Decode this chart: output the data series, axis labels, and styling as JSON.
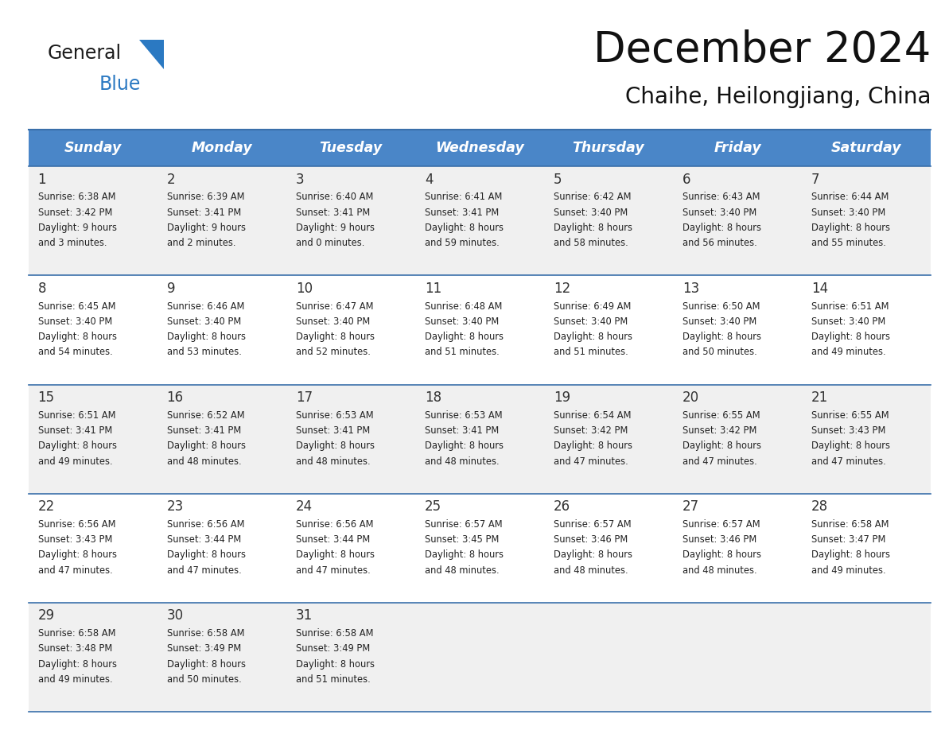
{
  "title": "December 2024",
  "subtitle": "Chaihe, Heilongjiang, China",
  "days_of_week": [
    "Sunday",
    "Monday",
    "Tuesday",
    "Wednesday",
    "Thursday",
    "Friday",
    "Saturday"
  ],
  "header_bg": "#4a86c8",
  "header_text": "#ffffff",
  "row_bg_odd": "#f0f0f0",
  "row_bg_even": "#ffffff",
  "cell_text_color": "#222222",
  "divider_color": "#3a6faa",
  "logo_black": "#1a1a1a",
  "logo_blue": "#2b79c2",
  "triangle_color": "#2b79c2",
  "calendar_data": [
    [
      {
        "day": "1",
        "sunrise": "6:38 AM",
        "sunset": "3:42 PM",
        "daylight": "9 hours and 3 minutes."
      },
      {
        "day": "2",
        "sunrise": "6:39 AM",
        "sunset": "3:41 PM",
        "daylight": "9 hours and 2 minutes."
      },
      {
        "day": "3",
        "sunrise": "6:40 AM",
        "sunset": "3:41 PM",
        "daylight": "9 hours and 0 minutes."
      },
      {
        "day": "4",
        "sunrise": "6:41 AM",
        "sunset": "3:41 PM",
        "daylight": "8 hours and 59 minutes."
      },
      {
        "day": "5",
        "sunrise": "6:42 AM",
        "sunset": "3:40 PM",
        "daylight": "8 hours and 58 minutes."
      },
      {
        "day": "6",
        "sunrise": "6:43 AM",
        "sunset": "3:40 PM",
        "daylight": "8 hours and 56 minutes."
      },
      {
        "day": "7",
        "sunrise": "6:44 AM",
        "sunset": "3:40 PM",
        "daylight": "8 hours and 55 minutes."
      }
    ],
    [
      {
        "day": "8",
        "sunrise": "6:45 AM",
        "sunset": "3:40 PM",
        "daylight": "8 hours and 54 minutes."
      },
      {
        "day": "9",
        "sunrise": "6:46 AM",
        "sunset": "3:40 PM",
        "daylight": "8 hours and 53 minutes."
      },
      {
        "day": "10",
        "sunrise": "6:47 AM",
        "sunset": "3:40 PM",
        "daylight": "8 hours and 52 minutes."
      },
      {
        "day": "11",
        "sunrise": "6:48 AM",
        "sunset": "3:40 PM",
        "daylight": "8 hours and 51 minutes."
      },
      {
        "day": "12",
        "sunrise": "6:49 AM",
        "sunset": "3:40 PM",
        "daylight": "8 hours and 51 minutes."
      },
      {
        "day": "13",
        "sunrise": "6:50 AM",
        "sunset": "3:40 PM",
        "daylight": "8 hours and 50 minutes."
      },
      {
        "day": "14",
        "sunrise": "6:51 AM",
        "sunset": "3:40 PM",
        "daylight": "8 hours and 49 minutes."
      }
    ],
    [
      {
        "day": "15",
        "sunrise": "6:51 AM",
        "sunset": "3:41 PM",
        "daylight": "8 hours and 49 minutes."
      },
      {
        "day": "16",
        "sunrise": "6:52 AM",
        "sunset": "3:41 PM",
        "daylight": "8 hours and 48 minutes."
      },
      {
        "day": "17",
        "sunrise": "6:53 AM",
        "sunset": "3:41 PM",
        "daylight": "8 hours and 48 minutes."
      },
      {
        "day": "18",
        "sunrise": "6:53 AM",
        "sunset": "3:41 PM",
        "daylight": "8 hours and 48 minutes."
      },
      {
        "day": "19",
        "sunrise": "6:54 AM",
        "sunset": "3:42 PM",
        "daylight": "8 hours and 47 minutes."
      },
      {
        "day": "20",
        "sunrise": "6:55 AM",
        "sunset": "3:42 PM",
        "daylight": "8 hours and 47 minutes."
      },
      {
        "day": "21",
        "sunrise": "6:55 AM",
        "sunset": "3:43 PM",
        "daylight": "8 hours and 47 minutes."
      }
    ],
    [
      {
        "day": "22",
        "sunrise": "6:56 AM",
        "sunset": "3:43 PM",
        "daylight": "8 hours and 47 minutes."
      },
      {
        "day": "23",
        "sunrise": "6:56 AM",
        "sunset": "3:44 PM",
        "daylight": "8 hours and 47 minutes."
      },
      {
        "day": "24",
        "sunrise": "6:56 AM",
        "sunset": "3:44 PM",
        "daylight": "8 hours and 47 minutes."
      },
      {
        "day": "25",
        "sunrise": "6:57 AM",
        "sunset": "3:45 PM",
        "daylight": "8 hours and 48 minutes."
      },
      {
        "day": "26",
        "sunrise": "6:57 AM",
        "sunset": "3:46 PM",
        "daylight": "8 hours and 48 minutes."
      },
      {
        "day": "27",
        "sunrise": "6:57 AM",
        "sunset": "3:46 PM",
        "daylight": "8 hours and 48 minutes."
      },
      {
        "day": "28",
        "sunrise": "6:58 AM",
        "sunset": "3:47 PM",
        "daylight": "8 hours and 49 minutes."
      }
    ],
    [
      {
        "day": "29",
        "sunrise": "6:58 AM",
        "sunset": "3:48 PM",
        "daylight": "8 hours and 49 minutes."
      },
      {
        "day": "30",
        "sunrise": "6:58 AM",
        "sunset": "3:49 PM",
        "daylight": "8 hours and 50 minutes."
      },
      {
        "day": "31",
        "sunrise": "6:58 AM",
        "sunset": "3:49 PM",
        "daylight": "8 hours and 51 minutes."
      },
      null,
      null,
      null,
      null
    ]
  ]
}
